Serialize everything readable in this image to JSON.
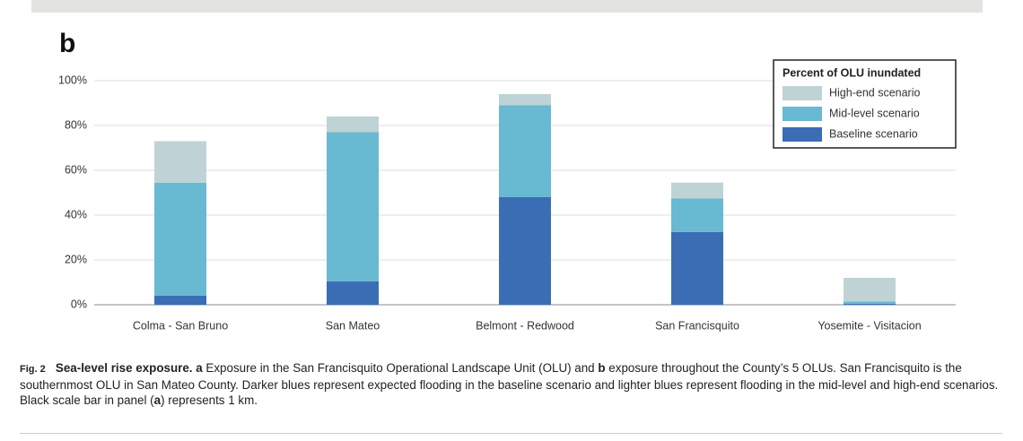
{
  "chart_data": {
    "type": "stacked_bar",
    "panel_label": "b",
    "legend_title": "Percent of OLU inundated",
    "categories": [
      "Colma - San Bruno",
      "San Mateo",
      "Belmont - Redwood",
      "San Francisquito",
      "Yosemite - Visitacion"
    ],
    "series": [
      {
        "name": "Baseline scenario",
        "color": "#3b6db4",
        "values": [
          4,
          10.5,
          48,
          32.5,
          0.5
        ]
      },
      {
        "name": "Mid-level scenario",
        "color": "#68b9d2",
        "values": [
          50.5,
          66.5,
          41,
          15,
          1
        ]
      },
      {
        "name": "High-end scenario",
        "color": "#bfd3d6",
        "values": [
          18.5,
          7,
          5,
          7,
          10.5
        ]
      }
    ],
    "ylim": [
      0,
      100
    ],
    "yticks": [
      {
        "value": 0,
        "label": "0%"
      },
      {
        "value": 20,
        "label": "20%"
      },
      {
        "value": 40,
        "label": "40%"
      },
      {
        "value": 60,
        "label": "60%"
      },
      {
        "value": 80,
        "label": "80%"
      },
      {
        "value": 100,
        "label": "100%"
      }
    ],
    "grid": true,
    "legend_position": "upper right"
  },
  "caption": {
    "runs": [
      {
        "text": "Fig. 2",
        "bold": true
      },
      {
        "text": "Sea-level rise exposure.",
        "bold": true
      },
      {
        "text": "a",
        "bold": true
      },
      {
        "text": "Exposure in the San Francisquito Operational Landscape Unit (OLU) and",
        "bold": false
      },
      {
        "text": "b",
        "bold": true
      },
      {
        "text": "exposure throughout the County’s 5 OLUs. San Francisquito is the southernmost OLU in San Mateo County. Darker blues represent expected flooding in the baseline scenario and lighter blues represent flooding in the mid-level and high-end scenarios. Black scale bar in panel (",
        "bold": false
      },
      {
        "text": "a",
        "bold": true
      },
      {
        "text": ") represents 1 km.",
        "bold": false
      }
    ]
  }
}
